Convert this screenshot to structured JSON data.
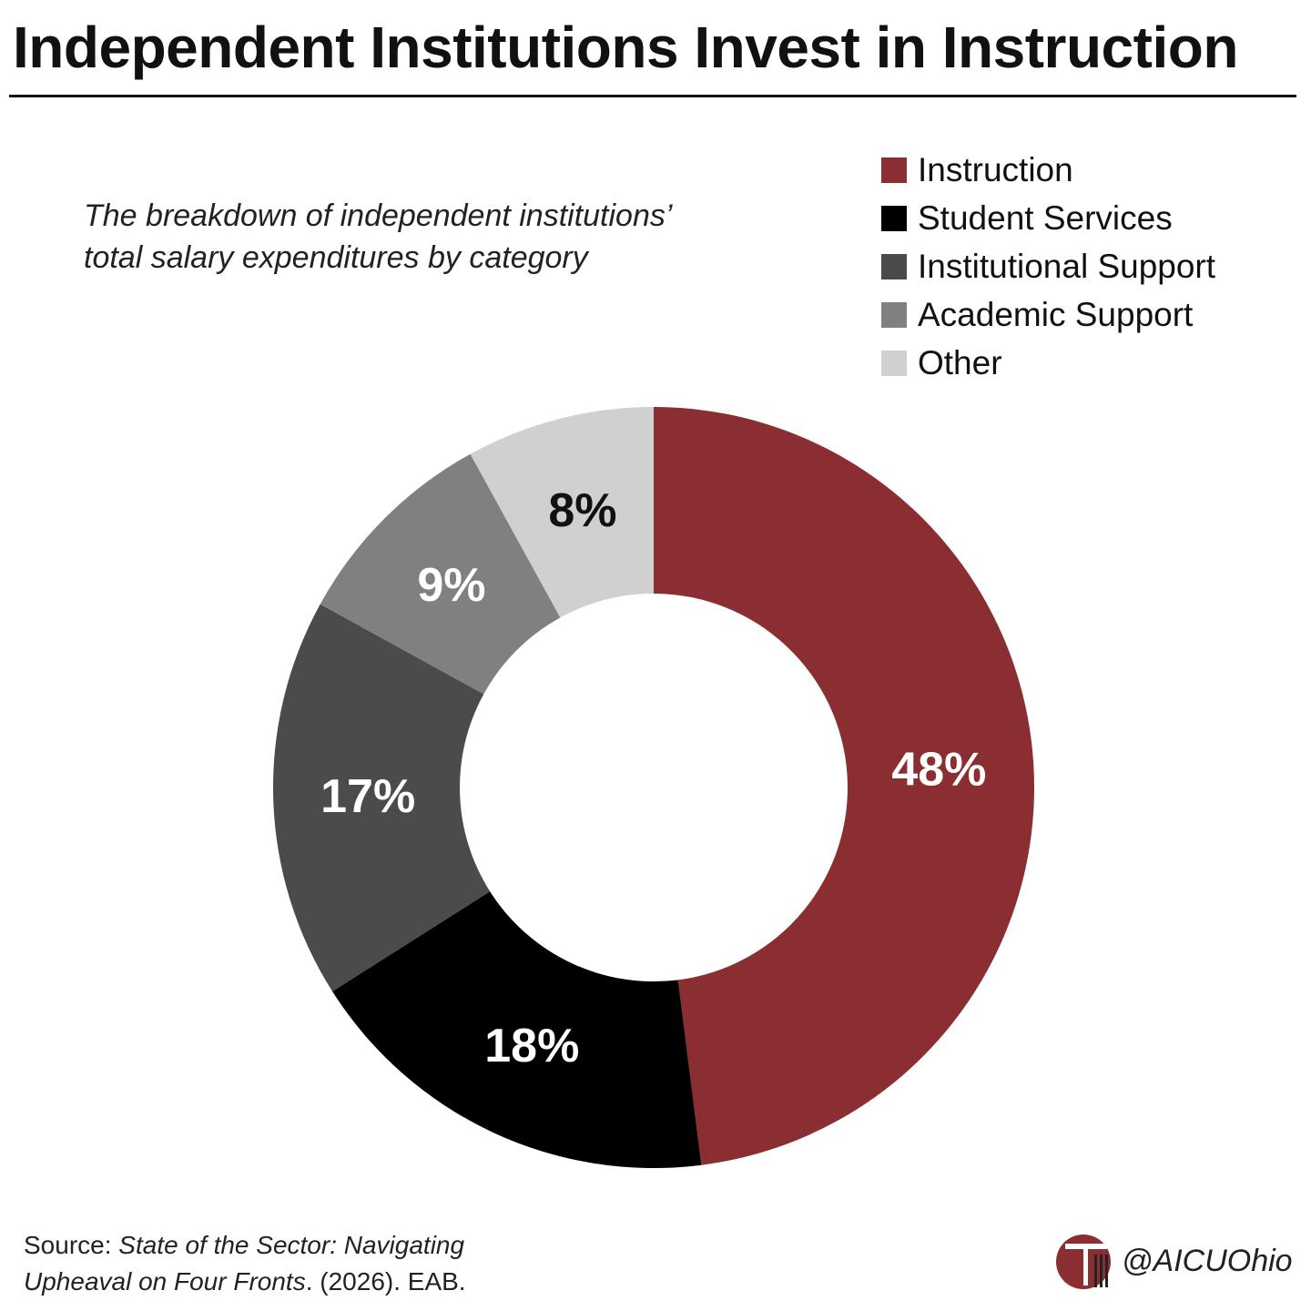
{
  "header": {
    "title": "Independent Institutions Invest in Instruction"
  },
  "subtitle": {
    "line1": "The breakdown of independent institutions’",
    "line2": "total salary expenditures by category"
  },
  "chart_data": {
    "type": "pie",
    "donut": true,
    "slices": [
      {
        "name": "Instruction",
        "value": 48,
        "label": "48%",
        "color": "#8b2e32",
        "label_color": "#ffffff"
      },
      {
        "name": "Student Services",
        "value": 18,
        "label": "18%",
        "color": "#000000",
        "label_color": "#ffffff"
      },
      {
        "name": "Institutional Support",
        "value": 17,
        "label": "17%",
        "color": "#4b4b4b",
        "label_color": "#ffffff"
      },
      {
        "name": "Academic Support",
        "value": 9,
        "label": "9%",
        "color": "#808080",
        "label_color": "#ffffff"
      },
      {
        "name": "Other",
        "value": 8,
        "label": "8%",
        "color": "#d0d0d0",
        "label_color": "#111111"
      }
    ],
    "legend_position": "top-right",
    "start": "top",
    "direction": "clockwise"
  },
  "source": {
    "prefix": "Source: ",
    "title_line1": "State of the Sector: Navigating",
    "title_line2": "Upheaval on Four Fronts",
    "suffix": ". (2026). EAB."
  },
  "brand": {
    "handle": "@AICUOhio",
    "logo_icon": "column-logo-icon",
    "logo_color": "#8b2e32"
  }
}
